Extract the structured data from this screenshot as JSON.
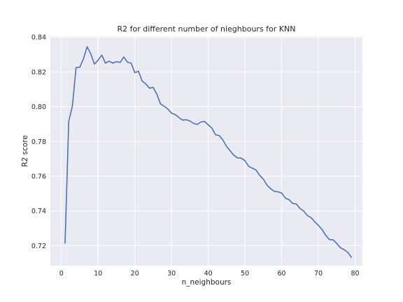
{
  "chart_data": {
    "type": "line",
    "title": "R2 for different number of nieghbours for KNN",
    "xlabel": "n_neighbours",
    "ylabel": "R2 score",
    "xlim": [
      -3,
      82
    ],
    "ylim": [
      0.7085,
      0.8405
    ],
    "xticks": [
      0,
      10,
      20,
      30,
      40,
      50,
      60,
      70,
      80
    ],
    "xtick_labels": [
      "0",
      "10",
      "20",
      "30",
      "40",
      "50",
      "60",
      "70",
      "80"
    ],
    "yticks": [
      0.72,
      0.74,
      0.76,
      0.78,
      0.8,
      0.82,
      0.84
    ],
    "ytick_labels": [
      "0.72",
      "0.74",
      "0.76",
      "0.78",
      "0.80",
      "0.82",
      "0.84"
    ],
    "grid": true,
    "series": [
      {
        "color": "#4c72b0",
        "x": [
          1,
          2,
          3,
          4,
          5,
          6,
          7,
          8,
          9,
          10,
          11,
          12,
          13,
          14,
          15,
          16,
          17,
          18,
          19,
          20,
          21,
          22,
          23,
          24,
          25,
          26,
          27,
          28,
          29,
          30,
          31,
          32,
          33,
          34,
          35,
          36,
          37,
          38,
          39,
          40,
          41,
          42,
          43,
          44,
          45,
          46,
          47,
          48,
          49,
          50,
          51,
          52,
          53,
          54,
          55,
          56,
          57,
          58,
          59,
          60,
          61,
          62,
          63,
          64,
          65,
          66,
          67,
          68,
          69,
          70,
          71,
          72,
          73,
          74,
          75,
          76,
          77,
          78,
          79
        ],
        "y": [
          0.7215,
          0.7915,
          0.8005,
          0.8225,
          0.8227,
          0.8275,
          0.8345,
          0.8305,
          0.8245,
          0.8268,
          0.8297,
          0.8251,
          0.8262,
          0.8251,
          0.8259,
          0.8255,
          0.8286,
          0.8256,
          0.8251,
          0.8196,
          0.8204,
          0.8148,
          0.8131,
          0.8107,
          0.8111,
          0.8072,
          0.8016,
          0.8003,
          0.7987,
          0.7963,
          0.7955,
          0.7938,
          0.7923,
          0.7925,
          0.7918,
          0.7904,
          0.7898,
          0.7912,
          0.7915,
          0.7896,
          0.7877,
          0.7838,
          0.7834,
          0.7808,
          0.7771,
          0.7745,
          0.772,
          0.7705,
          0.7704,
          0.769,
          0.7657,
          0.7646,
          0.7636,
          0.7605,
          0.7583,
          0.7549,
          0.7528,
          0.7513,
          0.751,
          0.7503,
          0.7474,
          0.7465,
          0.7443,
          0.744,
          0.7414,
          0.74,
          0.7373,
          0.7362,
          0.7338,
          0.7317,
          0.7293,
          0.726,
          0.7235,
          0.7234,
          0.7213,
          0.7188,
          0.7177,
          0.7162,
          0.7133
        ]
      }
    ]
  }
}
